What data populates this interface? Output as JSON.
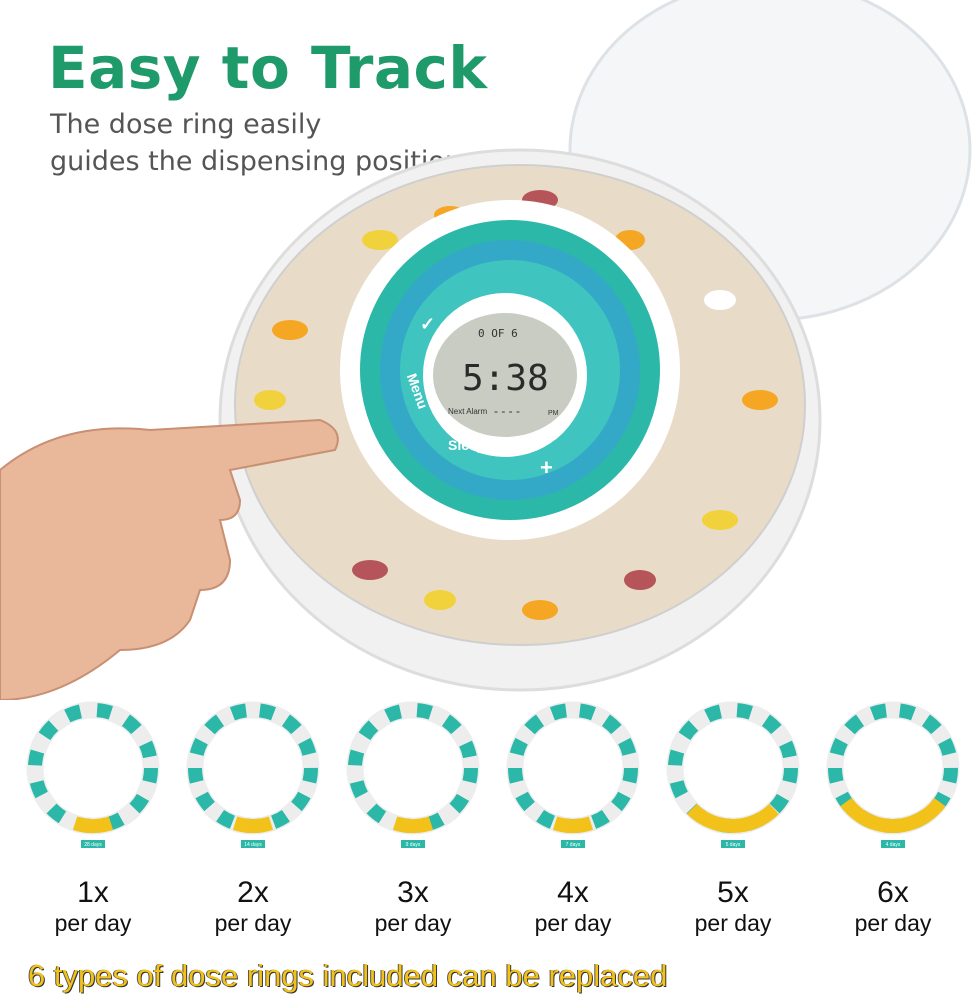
{
  "header": {
    "title": "Easy to Track",
    "subtitle_line1": "The dose ring easily",
    "subtitle_line2": "guides the dispensing position"
  },
  "display": {
    "dose_counter": "0 OF 6",
    "time": "5:38",
    "next_alarm_label": "Next Alarm",
    "next_alarm_value": "- - - -",
    "pm": "PM"
  },
  "device_buttons": {
    "menu": "Menu",
    "sleep": "Sleep",
    "plus": "+",
    "check": "✓"
  },
  "rings": [
    {
      "count": "1x",
      "per": "per day",
      "tag": "28 days"
    },
    {
      "count": "2x",
      "per": "per day",
      "tag": "14 days"
    },
    {
      "count": "3x",
      "per": "per day",
      "tag": "9 days"
    },
    {
      "count": "4x",
      "per": "per day",
      "tag": "7 days"
    },
    {
      "count": "5x",
      "per": "per day",
      "tag": "5 days"
    },
    {
      "count": "6x",
      "per": "per day",
      "tag": "4 days"
    }
  ],
  "footer": {
    "text": "6 types of dose rings included can be replaced"
  },
  "colors": {
    "brand_green": "#1f9a6b",
    "teal": "#2bb8a8",
    "yellow": "#f2c21a",
    "lcd": "#c9ccc2"
  }
}
